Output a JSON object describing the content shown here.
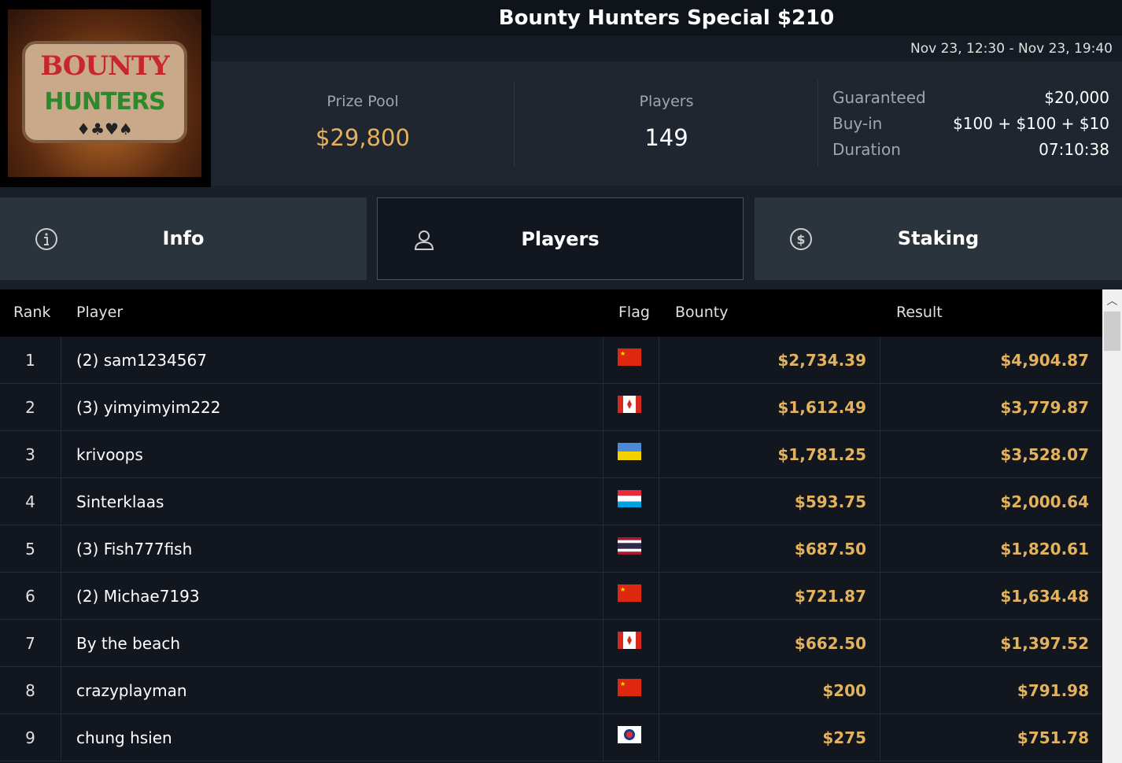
{
  "logo": {
    "line1": "BOUNTY",
    "line2": "HUNTERS"
  },
  "title": "Bounty Hunters Special $210",
  "dates": "Nov 23, 12:30 - Nov 23, 19:40",
  "stats": {
    "prize_pool_label": "Prize Pool",
    "prize_pool": "$29,800",
    "players_label": "Players",
    "players": "149",
    "details": [
      {
        "k": "Guaranteed",
        "v": "$20,000"
      },
      {
        "k": "Buy-in",
        "v": "$100 + $100 + $10"
      },
      {
        "k": "Duration",
        "v": "07:10:38"
      }
    ]
  },
  "tabs": [
    {
      "label": "Info",
      "icon": "info-icon"
    },
    {
      "label": "Players",
      "icon": "user-icon",
      "active": true
    },
    {
      "label": "Staking",
      "icon": "dollar-coin-icon"
    }
  ],
  "table": {
    "headers": {
      "rank": "Rank",
      "player": "Player",
      "flag": "Flag",
      "bounty": "Bounty",
      "result": "Result"
    },
    "rows": [
      {
        "rank": "1",
        "player": "(2) sam1234567",
        "flag": "china",
        "bounty": "$2,734.39",
        "result": "$4,904.87"
      },
      {
        "rank": "2",
        "player": "(3) yimyimyim222",
        "flag": "canada",
        "bounty": "$1,612.49",
        "result": "$3,779.87"
      },
      {
        "rank": "3",
        "player": "krivoops",
        "flag": "ukraine",
        "bounty": "$1,781.25",
        "result": "$3,528.07"
      },
      {
        "rank": "4",
        "player": "Sinterklaas",
        "flag": "luxembourg",
        "bounty": "$593.75",
        "result": "$2,000.64"
      },
      {
        "rank": "5",
        "player": "(3) Fish777fish",
        "flag": "thailand",
        "bounty": "$687.50",
        "result": "$1,820.61"
      },
      {
        "rank": "6",
        "player": "(2) Michae7193",
        "flag": "china",
        "bounty": "$721.87",
        "result": "$1,634.48"
      },
      {
        "rank": "7",
        "player": "By the beach",
        "flag": "canada",
        "bounty": "$662.50",
        "result": "$1,397.52"
      },
      {
        "rank": "8",
        "player": "crazyplayman",
        "flag": "china",
        "bounty": "$200",
        "result": "$791.98"
      },
      {
        "rank": "9",
        "player": "chung hsien",
        "flag": "chinese-taipei",
        "bounty": "$275",
        "result": "$751.78"
      }
    ]
  },
  "colors": {
    "gold": "#e2b25e"
  }
}
